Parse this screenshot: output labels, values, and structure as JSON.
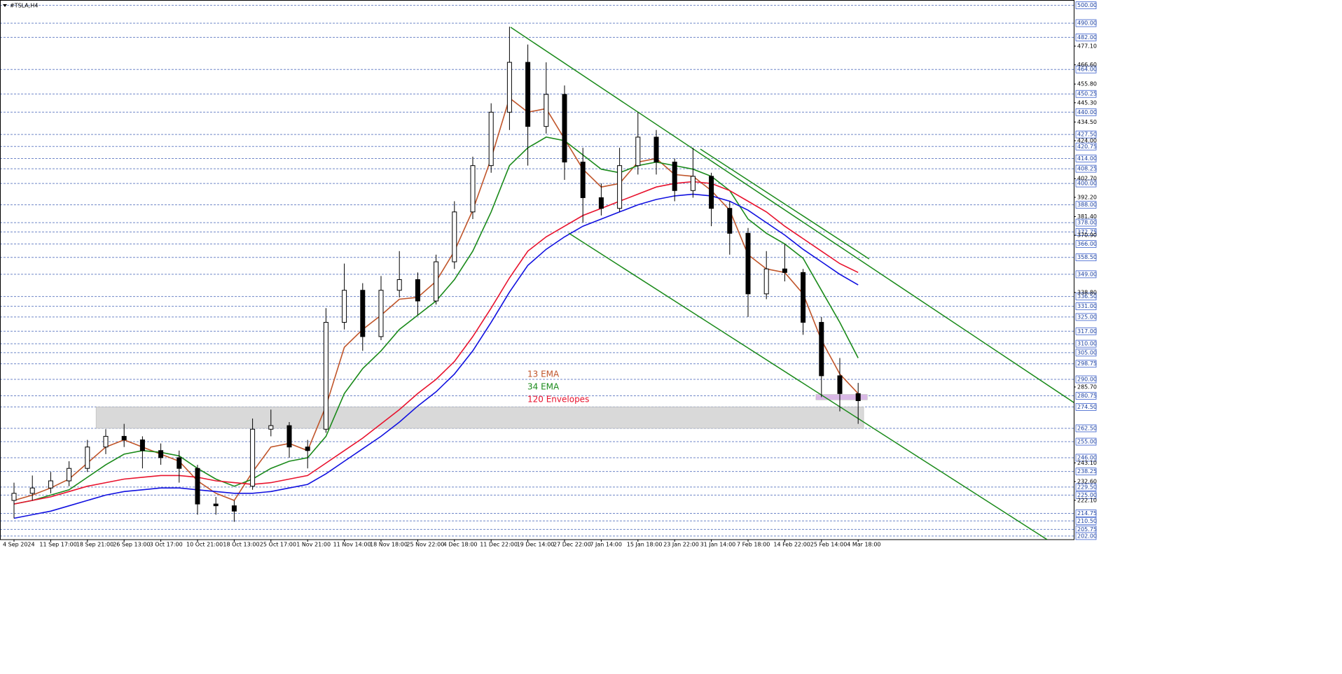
{
  "chart_data": {
    "type": "candlestick",
    "title": "#TSLA,H4",
    "categories": [
      "4 Sep 2024",
      null,
      "11 Sep 17:00",
      null,
      "18 Sep 21:00",
      null,
      "26 Sep 13:00",
      null,
      "3 Oct 17:00",
      null,
      "10 Oct 21:00",
      null,
      "18 Oct 13:00",
      null,
      "25 Oct 17:00",
      null,
      "1 Nov 21:00",
      null,
      "11 Nov 14:00",
      null,
      "18 Nov 18:00",
      null,
      "25 Nov 22:00",
      null,
      "4 Dec 18:00",
      null,
      "11 Dec 22:00",
      null,
      "19 Dec 14:00",
      null,
      "27 Dec 22:00",
      null,
      "7 Jan 14:00",
      null,
      "15 Jan 18:00",
      null,
      "23 Jan 22:00",
      null,
      "31 Jan 14:00",
      null,
      "7 Feb 18:00",
      null,
      "14 Feb 22:00",
      null,
      "25 Feb 14:00",
      null,
      "4 Mar 18:00"
    ],
    "open": [
      222,
      226,
      229,
      233,
      240,
      252,
      258,
      256,
      250,
      246,
      240,
      220,
      219,
      230,
      262,
      264,
      252,
      262,
      322,
      340,
      314,
      340,
      346,
      334,
      356,
      384,
      410,
      440,
      468,
      432,
      450,
      412,
      392,
      386,
      410,
      426,
      412,
      396,
      404,
      386,
      372,
      338,
      352,
      350,
      322,
      292,
      282
    ],
    "high": [
      232,
      236,
      238,
      244,
      256,
      262,
      265,
      258,
      254,
      250,
      242,
      224,
      222,
      268,
      273,
      266,
      256,
      330,
      355,
      344,
      348,
      362,
      350,
      360,
      390,
      415,
      445,
      488,
      478,
      468,
      455,
      420,
      400,
      420,
      440,
      430,
      414,
      420,
      406,
      390,
      375,
      362,
      366,
      352,
      325,
      302,
      288
    ],
    "low": [
      212,
      222,
      226,
      230,
      238,
      248,
      252,
      240,
      242,
      232,
      214,
      214,
      210,
      228,
      258,
      246,
      240,
      260,
      318,
      306,
      312,
      336,
      326,
      332,
      352,
      380,
      406,
      430,
      410,
      428,
      402,
      378,
      382,
      384,
      405,
      405,
      390,
      392,
      376,
      360,
      325,
      335,
      345,
      315,
      280,
      272,
      265
    ],
    "close": [
      226,
      229,
      233,
      240,
      252,
      258,
      256,
      250,
      246,
      240,
      220,
      219,
      216,
      262,
      264,
      252,
      250,
      322,
      340,
      314,
      340,
      346,
      334,
      356,
      384,
      410,
      440,
      468,
      432,
      450,
      412,
      392,
      386,
      410,
      426,
      412,
      396,
      404,
      386,
      372,
      338,
      352,
      350,
      322,
      292,
      282,
      278
    ],
    "series": [
      {
        "name": "13 EMA",
        "color": "#c0552a",
        "values": [
          222,
          225,
          229,
          234,
          243,
          252,
          256,
          252,
          248,
          244,
          233,
          226,
          222,
          238,
          252,
          254,
          250,
          275,
          308,
          318,
          326,
          335,
          336,
          345,
          362,
          385,
          414,
          448,
          440,
          442,
          425,
          408,
          398,
          400,
          412,
          414,
          405,
          404,
          396,
          385,
          360,
          352,
          350,
          338,
          312,
          293,
          282
        ]
      },
      {
        "name": "34 EMA",
        "color": "#1a8a1a",
        "values": [
          220,
          222,
          225,
          228,
          235,
          242,
          248,
          250,
          249,
          247,
          240,
          234,
          230,
          234,
          240,
          244,
          246,
          258,
          282,
          296,
          306,
          318,
          326,
          334,
          346,
          362,
          384,
          410,
          420,
          426,
          424,
          416,
          408,
          406,
          410,
          412,
          410,
          408,
          404,
          396,
          380,
          372,
          366,
          358,
          340,
          322,
          302
        ]
      },
      {
        "name": "120 Envelopes",
        "color": "#e8122d",
        "values": [
          220,
          222,
          224,
          227,
          230,
          232,
          234,
          235,
          236,
          236,
          235,
          233,
          232,
          231,
          232,
          234,
          236,
          243,
          250,
          257,
          265,
          273,
          282,
          290,
          300,
          314,
          330,
          347,
          362,
          370,
          376,
          382,
          386,
          390,
          394,
          398,
          400,
          401,
          400,
          396,
          390,
          384,
          376,
          369,
          362,
          355,
          350
        ],
        "lower_color": "#1010e0",
        "lower_values": [
          212,
          214,
          216,
          219,
          222,
          225,
          227,
          228,
          229,
          229,
          228,
          227,
          226,
          226,
          227,
          229,
          231,
          237,
          244,
          251,
          258,
          266,
          275,
          283,
          293,
          306,
          322,
          339,
          354,
          363,
          370,
          376,
          380,
          384,
          388,
          391,
          393,
          394,
          393,
          390,
          385,
          378,
          371,
          363,
          356,
          349,
          343
        ]
      }
    ],
    "trendlines": [
      {
        "color": "#1a8a1a",
        "x": [
          27.06,
          57.75
        ],
        "y": [
          487.7,
          277.0
        ]
      },
      {
        "color": "#1a8a1a",
        "x": [
          37.4,
          46.6
        ],
        "y": [
          419.3,
          357.6
        ]
      },
      {
        "color": "#1a8a1a",
        "x": [
          30.23,
          56.3
        ],
        "y": [
          372.1,
          200.0
        ]
      }
    ],
    "zones": [
      {
        "color": "#d9d9d9",
        "x": [
          4.47,
          46.3
        ],
        "y": [
          274.5,
          262.5
        ]
      },
      {
        "color": "#d9b8e6",
        "x": [
          43.7,
          46.5
        ],
        "y": [
          281.5,
          278.5
        ]
      }
    ],
    "ylim": [
      200,
      503
    ],
    "yticks": [
      {
        "value": 477.1,
        "label": "477.10"
      },
      {
        "value": 466.6,
        "label": "466.60"
      },
      {
        "value": 455.8,
        "label": "455.80"
      },
      {
        "value": 445.3,
        "label": "445.30"
      },
      {
        "value": 434.5,
        "label": "434.50"
      },
      {
        "value": 424,
        "label": "424.00"
      },
      {
        "value": 402.7,
        "label": "402.70"
      },
      {
        "value": 392.2,
        "label": "392.20"
      },
      {
        "value": 381.4,
        "label": "381.40"
      },
      {
        "value": 370.9,
        "label": "370.90"
      },
      {
        "value": 338.8,
        "label": "338.80"
      },
      {
        "value": 285.7,
        "label": "285.70"
      },
      {
        "value": 243.1,
        "label": "243.10"
      },
      {
        "value": 232.6,
        "label": "232.60"
      },
      {
        "value": 222.1,
        "label": "222.10"
      }
    ],
    "levels": [
      {
        "value": 500,
        "label": "500.00"
      },
      {
        "value": 490,
        "label": "490.00"
      },
      {
        "value": 482,
        "label": "482.00"
      },
      {
        "value": 464,
        "label": "464.00"
      },
      {
        "value": 450.25,
        "label": "450.25"
      },
      {
        "value": 440,
        "label": "440.00"
      },
      {
        "value": 427.5,
        "label": "427.50"
      },
      {
        "value": 420.75,
        "label": "420.75"
      },
      {
        "value": 414,
        "label": "414.00"
      },
      {
        "value": 408.25,
        "label": "408.25"
      },
      {
        "value": 400,
        "label": "400.00"
      },
      {
        "value": 388,
        "label": "388.00"
      },
      {
        "value": 378,
        "label": "378.00"
      },
      {
        "value": 372.75,
        "label": "372.75"
      },
      {
        "value": 366,
        "label": "366.00"
      },
      {
        "value": 358.5,
        "label": "358.50"
      },
      {
        "value": 349,
        "label": "349.00"
      },
      {
        "value": 336.5,
        "label": "336.50"
      },
      {
        "value": 331,
        "label": "331.00"
      },
      {
        "value": 325,
        "label": "325.00"
      },
      {
        "value": 317,
        "label": "317.00"
      },
      {
        "value": 310,
        "label": "310.00"
      },
      {
        "value": 305,
        "label": "305.00"
      },
      {
        "value": 298.75,
        "label": "298.75"
      },
      {
        "value": 290,
        "label": "290.00"
      },
      {
        "value": 280.75,
        "label": "280.75"
      },
      {
        "value": 274.5,
        "label": "274.50"
      },
      {
        "value": 262.5,
        "label": "262.50"
      },
      {
        "value": 255,
        "label": "255.00"
      },
      {
        "value": 246,
        "label": "246.00"
      },
      {
        "value": 238.25,
        "label": "238.25"
      },
      {
        "value": 229.5,
        "label": "229.50"
      },
      {
        "value": 225,
        "label": "225.00"
      },
      {
        "value": 214.75,
        "label": "214.75"
      },
      {
        "value": 210.5,
        "label": "210.50"
      },
      {
        "value": 205.75,
        "label": "205.75"
      },
      {
        "value": 202,
        "label": "202.00"
      }
    ],
    "grid": true
  }
}
